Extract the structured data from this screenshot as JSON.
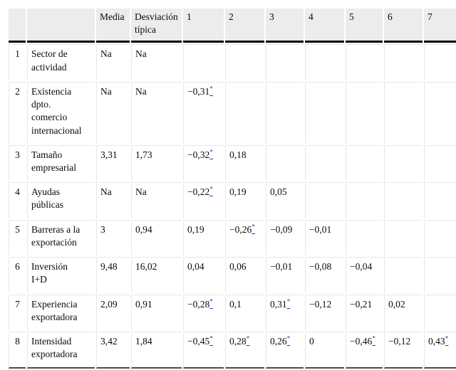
{
  "table": {
    "star_symbol": "*",
    "colors": {
      "header_bg": "#ececec",
      "grid_border": "#e7e7e7",
      "header_rule": "#000000",
      "bottom_rule": "#4a4a4a",
      "footnote_link": "#3333cc"
    },
    "headers": {
      "row_number": "",
      "variable": "",
      "media": "Media",
      "desviacion": "Desviación\ntípica",
      "numbers": [
        "1",
        "2",
        "3",
        "4",
        "5",
        "6",
        "7"
      ]
    },
    "rows": [
      {
        "num": "1",
        "label": "Sector de\nactividad",
        "media": "Na",
        "sd": "Na",
        "corr": [
          null,
          null,
          null,
          null,
          null,
          null,
          null
        ]
      },
      {
        "num": "2",
        "label": "Existencia\ndpto.\ncomercio\ninternacional",
        "media": "Na",
        "sd": "Na",
        "corr": [
          {
            "v": "−0,31",
            "star": true
          },
          null,
          null,
          null,
          null,
          null,
          null
        ]
      },
      {
        "num": "3",
        "label": "Tamaño\nempresarial",
        "media": "3,31",
        "sd": "1,73",
        "corr": [
          {
            "v": "−0,32",
            "star": true
          },
          {
            "v": "0,18",
            "star": false
          },
          null,
          null,
          null,
          null,
          null
        ]
      },
      {
        "num": "4",
        "label": "Ayudas\npúblicas",
        "media": "Na",
        "sd": "Na",
        "corr": [
          {
            "v": "−0,22",
            "star": true
          },
          {
            "v": "0,19",
            "star": false
          },
          {
            "v": "0,05",
            "star": false
          },
          null,
          null,
          null,
          null
        ]
      },
      {
        "num": "5",
        "label": "Barreras a la\nexportación",
        "media": "3",
        "sd": "0,94",
        "corr": [
          {
            "v": "0,19",
            "star": false
          },
          {
            "v": "−0,26",
            "star": true
          },
          {
            "v": "−0,09",
            "star": false
          },
          {
            "v": "−0,01",
            "star": false
          },
          null,
          null,
          null
        ]
      },
      {
        "num": "6",
        "label": "Inversión\nI+D",
        "media": "9,48",
        "sd": "16,02",
        "corr": [
          {
            "v": "0,04",
            "star": false
          },
          {
            "v": "0,06",
            "star": false
          },
          {
            "v": "−0,01",
            "star": false
          },
          {
            "v": "−0,08",
            "star": false
          },
          {
            "v": "−0,04",
            "star": false
          },
          null,
          null
        ]
      },
      {
        "num": "7",
        "label": "Experiencia\nexportadora",
        "media": "2,09",
        "sd": "0,91",
        "corr": [
          {
            "v": "−0,28",
            "star": true
          },
          {
            "v": "0,1",
            "star": false
          },
          {
            "v": "0,31",
            "star": true
          },
          {
            "v": "−0,12",
            "star": false
          },
          {
            "v": "−0,21",
            "star": false
          },
          {
            "v": "0,02",
            "star": false
          },
          null
        ]
      },
      {
        "num": "8",
        "label": "Intensidad\nexportadora",
        "media": "3,42",
        "sd": "1,84",
        "corr": [
          {
            "v": "−0,45",
            "star": true
          },
          {
            "v": "0,28",
            "star": true
          },
          {
            "v": "0,26",
            "star": true
          },
          {
            "v": "0",
            "star": false
          },
          {
            "v": "−0,46",
            "star": true
          },
          {
            "v": "−0,12",
            "star": false
          },
          {
            "v": "0,43",
            "star": true
          }
        ]
      }
    ]
  }
}
